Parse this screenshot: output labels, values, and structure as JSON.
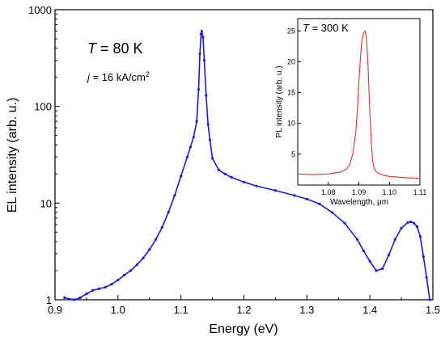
{
  "chart_data": [
    {
      "type": "line",
      "role": "main",
      "xlabel": "Energy (eV)",
      "ylabel": "EL intensity (arb. u.)",
      "xlim": [
        0.9,
        1.5
      ],
      "ylim": [
        1,
        1000
      ],
      "yscale": "log",
      "x_ticks": [
        0.9,
        1.0,
        1.1,
        1.2,
        1.3,
        1.4,
        1.5
      ],
      "x_tick_labels": [
        "0.9",
        "1.0",
        "1.1",
        "1.2",
        "1.3",
        "1.4",
        "1.5"
      ],
      "y_ticks": [
        1,
        10,
        100,
        1000
      ],
      "y_tick_labels": [
        "1",
        "10",
        "100",
        "1000"
      ],
      "grid": false,
      "annotations": {
        "temperature_symbol": "T",
        "temperature_value": " = 80 K",
        "current_symbol": "j",
        "current_value": " = 16 kA/cm",
        "current_exponent": "2"
      },
      "series": [
        {
          "color": "#1a1adf",
          "marker": "dot",
          "x": [
            0.915,
            0.93,
            0.94,
            0.95,
            0.96,
            0.97,
            0.98,
            0.99,
            1.0,
            1.01,
            1.02,
            1.03,
            1.04,
            1.05,
            1.06,
            1.07,
            1.08,
            1.09,
            1.1,
            1.11,
            1.115,
            1.12,
            1.125,
            1.128,
            1.13,
            1.132,
            1.133,
            1.135,
            1.137,
            1.14,
            1.143,
            1.146,
            1.15,
            1.16,
            1.17,
            1.18,
            1.2,
            1.22,
            1.25,
            1.28,
            1.3,
            1.32,
            1.34,
            1.36,
            1.38,
            1.39,
            1.4,
            1.41,
            1.42,
            1.43,
            1.44,
            1.45,
            1.46,
            1.465,
            1.47,
            1.475,
            1.48,
            1.485,
            1.49,
            1.495
          ],
          "y": [
            1.05,
            1.0,
            1.05,
            1.15,
            1.25,
            1.3,
            1.35,
            1.45,
            1.6,
            1.8,
            2.0,
            2.3,
            2.7,
            3.3,
            4.2,
            5.6,
            8.0,
            12.0,
            19.0,
            30.0,
            38.0,
            48.0,
            70.0,
            150.0,
            350.0,
            560.0,
            600.0,
            520.0,
            300.0,
            130.0,
            65.0,
            45.0,
            29.0,
            22.0,
            20.0,
            18.5,
            16.5,
            15.0,
            13.5,
            12.0,
            11.0,
            9.8,
            8.0,
            6.2,
            4.2,
            3.2,
            2.5,
            2.0,
            2.1,
            2.9,
            4.2,
            5.5,
            6.3,
            6.4,
            6.2,
            5.7,
            4.5,
            2.8,
            1.7,
            1.0
          ]
        }
      ]
    },
    {
      "type": "line",
      "role": "inset",
      "xlabel": "Wavelength, μm",
      "ylabel": "PL intensity (arb. u.)",
      "xlim": [
        1.07,
        1.11
      ],
      "ylim": [
        0,
        27
      ],
      "x_ticks": [
        1.08,
        1.09,
        1.1,
        1.11
      ],
      "x_tick_labels": [
        "1.08",
        "1.09",
        "1.10",
        "1.11"
      ],
      "y_ticks": [
        5,
        10,
        15,
        20,
        25
      ],
      "y_tick_labels": [
        "5",
        "10",
        "15",
        "20",
        "25"
      ],
      "grid": false,
      "annotations": {
        "temperature_symbol": "T",
        "temperature_value": " = 300 K"
      },
      "series": [
        {
          "color": "#e8302a",
          "marker": "none",
          "x": [
            1.07,
            1.075,
            1.08,
            1.084,
            1.086,
            1.087,
            1.088,
            1.089,
            1.0895,
            1.09,
            1.0905,
            1.091,
            1.0915,
            1.092,
            1.0925,
            1.093,
            1.0935,
            1.094,
            1.0945,
            1.095,
            1.096,
            1.098,
            1.1,
            1.105,
            1.11
          ],
          "y": [
            1.8,
            1.7,
            1.8,
            2.1,
            2.6,
            3.3,
            5.0,
            8.5,
            12.0,
            16.5,
            20.5,
            23.5,
            24.5,
            25.0,
            24.0,
            19.5,
            13.0,
            7.5,
            4.0,
            2.7,
            2.0,
            1.6,
            1.4,
            1.2,
            1.1
          ]
        }
      ]
    }
  ]
}
